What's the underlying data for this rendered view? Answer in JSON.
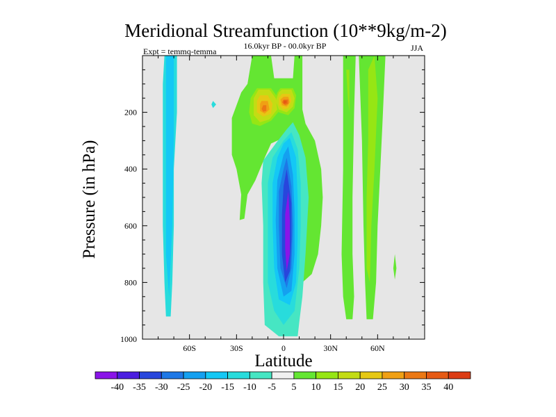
{
  "chart_data": {
    "type": "contour",
    "title": "Meridional Streamfunction (10**9kg/m-2)",
    "left_string": "Expt = temmq-temma",
    "center_string": "16.0kyr BP - 00.0kyr BP",
    "right_string": "JJA",
    "xlabel": "Latitude",
    "ylabel": "Pressure (in hPa)",
    "xlim": [
      -90,
      90
    ],
    "ylim": [
      0,
      1000
    ],
    "y_inverted": true,
    "x_ticks": [
      {
        "value": -60,
        "label": "60S"
      },
      {
        "value": -30,
        "label": "30S"
      },
      {
        "value": 0,
        "label": "0"
      },
      {
        "value": 30,
        "label": "30N"
      },
      {
        "value": 60,
        "label": "60N"
      }
    ],
    "y_ticks": [
      200,
      400,
      600,
      800,
      1000
    ],
    "background_color": "#e6e6e6",
    "colorbar": {
      "levels": [
        "-40",
        "-35",
        "-30",
        "-25",
        "-20",
        "-15",
        "-10",
        "-5",
        "5",
        "10",
        "15",
        "20",
        "25",
        "30",
        "35",
        "40"
      ],
      "colors": [
        "#8a14e8",
        "#4b1ee0",
        "#2846dc",
        "#1e78e6",
        "#14a0f0",
        "#14c8f5",
        "#28dcdc",
        "#46e6c3",
        "#f0f0f0",
        "#64e632",
        "#96e614",
        "#c3dc14",
        "#e6c814",
        "#f0a014",
        "#eb7814",
        "#e65a14",
        "#dc3c14"
      ]
    },
    "regions": [
      {
        "level": "-10",
        "points": [
          [
            -76,
            0
          ],
          [
            -68,
            0
          ],
          [
            -68,
            200
          ],
          [
            -70,
            400
          ],
          [
            -70,
            600
          ],
          [
            -71,
            800
          ],
          [
            -72,
            920
          ],
          [
            -75,
            920
          ],
          [
            -76,
            800
          ],
          [
            -77,
            600
          ],
          [
            -77,
            300
          ],
          [
            -77,
            100
          ]
        ]
      },
      {
        "level": "-15",
        "points": [
          [
            -75,
            0
          ],
          [
            -70,
            0
          ],
          [
            -70,
            300
          ],
          [
            -71,
            600
          ],
          [
            -73,
            850
          ],
          [
            -75,
            700
          ],
          [
            -75,
            300
          ]
        ]
      },
      {
        "level": "-10",
        "points": [
          [
            -45,
            160
          ],
          [
            -43,
            172
          ],
          [
            -45,
            185
          ],
          [
            -46,
            172
          ]
        ]
      },
      {
        "level": "5",
        "points": [
          [
            -20,
            0
          ],
          [
            -8,
            0
          ],
          [
            -6,
            80
          ],
          [
            6,
            80
          ],
          [
            7,
            0
          ],
          [
            12,
            0
          ],
          [
            12,
            190
          ],
          [
            14,
            240
          ],
          [
            20,
            300
          ],
          [
            24,
            400
          ],
          [
            25,
            500
          ],
          [
            24,
            600
          ],
          [
            22,
            700
          ],
          [
            18,
            770
          ],
          [
            12,
            800
          ],
          [
            10,
            600
          ],
          [
            8,
            320
          ],
          [
            0,
            290
          ],
          [
            -8,
            310
          ],
          [
            -12,
            360
          ],
          [
            -18,
            440
          ],
          [
            -23,
            490
          ],
          [
            -25,
            575
          ],
          [
            -28,
            580
          ],
          [
            -27,
            490
          ],
          [
            -30,
            400
          ],
          [
            -33,
            350
          ],
          [
            -33,
            220
          ],
          [
            -27,
            130
          ],
          [
            -23,
            100
          ]
        ]
      },
      {
        "level": "-5",
        "points": [
          [
            6,
            235
          ],
          [
            10,
            280
          ],
          [
            14,
            360
          ],
          [
            16,
            500
          ],
          [
            14,
            700
          ],
          [
            12,
            850
          ],
          [
            10,
            940
          ],
          [
            9,
            990
          ],
          [
            -3,
            990
          ],
          [
            -12,
            950
          ],
          [
            -13,
            800
          ],
          [
            -13,
            600
          ],
          [
            -14,
            450
          ],
          [
            -13,
            370
          ],
          [
            -5,
            310
          ],
          [
            2,
            260
          ]
        ]
      },
      {
        "level": "-10",
        "points": [
          [
            5,
            270
          ],
          [
            9,
            330
          ],
          [
            11,
            450
          ],
          [
            11,
            600
          ],
          [
            10,
            750
          ],
          [
            7,
            900
          ],
          [
            0,
            950
          ],
          [
            -6,
            900
          ],
          [
            -10,
            800
          ],
          [
            -10,
            600
          ],
          [
            -10,
            450
          ],
          [
            -7,
            360
          ],
          [
            0,
            300
          ]
        ]
      },
      {
        "level": "-15",
        "points": [
          [
            4,
            290
          ],
          [
            8,
            360
          ],
          [
            9,
            500
          ],
          [
            9,
            650
          ],
          [
            8,
            800
          ],
          [
            4,
            880
          ],
          [
            -3,
            860
          ],
          [
            -6,
            750
          ],
          [
            -7,
            600
          ],
          [
            -7,
            450
          ],
          [
            -4,
            360
          ],
          [
            0,
            310
          ]
        ]
      },
      {
        "level": "-20",
        "points": [
          [
            3,
            320
          ],
          [
            6,
            420
          ],
          [
            7,
            550
          ],
          [
            7,
            700
          ],
          [
            5,
            830
          ],
          [
            0,
            850
          ],
          [
            -4,
            750
          ],
          [
            -5,
            580
          ],
          [
            -4,
            440
          ],
          [
            0,
            350
          ]
        ]
      },
      {
        "level": "-25",
        "points": [
          [
            2,
            360
          ],
          [
            5,
            460
          ],
          [
            6,
            600
          ],
          [
            5,
            750
          ],
          [
            2,
            820
          ],
          [
            -2,
            750
          ],
          [
            -3,
            600
          ],
          [
            -3,
            480
          ],
          [
            0,
            400
          ]
        ]
      },
      {
        "level": "-30",
        "points": [
          [
            2,
            400
          ],
          [
            5,
            520
          ],
          [
            5,
            650
          ],
          [
            4,
            760
          ],
          [
            1,
            800
          ],
          [
            -1,
            700
          ],
          [
            -1,
            560
          ],
          [
            0,
            460
          ]
        ]
      },
      {
        "level": "-40",
        "points": [
          [
            3,
            480
          ],
          [
            4,
            580
          ],
          [
            4,
            700
          ],
          [
            2,
            760
          ],
          [
            1,
            680
          ],
          [
            1,
            560
          ]
        ]
      },
      {
        "level": "5",
        "points": [
          [
            38,
            0
          ],
          [
            46,
            0
          ],
          [
            45,
            200
          ],
          [
            44,
            500
          ],
          [
            44,
            700
          ],
          [
            45,
            850
          ],
          [
            44,
            930
          ],
          [
            40,
            930
          ],
          [
            38,
            850
          ],
          [
            37,
            700
          ],
          [
            38,
            400
          ]
        ]
      },
      {
        "level": "5",
        "points": [
          [
            48,
            0
          ],
          [
            65,
            0
          ],
          [
            63,
            250
          ],
          [
            60,
            600
          ],
          [
            59,
            800
          ],
          [
            57,
            930
          ],
          [
            53,
            930
          ],
          [
            52,
            800
          ],
          [
            51,
            600
          ],
          [
            50,
            300
          ]
        ]
      },
      {
        "level": "10",
        "points": [
          [
            54,
            50
          ],
          [
            58,
            0
          ],
          [
            60,
            150
          ],
          [
            58,
            400
          ],
          [
            56,
            600
          ],
          [
            55,
            800
          ],
          [
            53,
            750
          ],
          [
            53,
            500
          ],
          [
            54,
            300
          ]
        ]
      },
      {
        "level": "10",
        "points": [
          [
            40,
            50
          ],
          [
            42,
            50
          ],
          [
            42,
            200
          ],
          [
            41,
            150
          ]
        ]
      },
      {
        "level": "5",
        "points": [
          [
            71,
            700
          ],
          [
            72,
            750
          ],
          [
            71,
            790
          ],
          [
            70,
            750
          ]
        ]
      },
      {
        "level": "10",
        "points": [
          [
            -17,
            115
          ],
          [
            -8,
            115
          ],
          [
            -4,
            145
          ],
          [
            -2,
            190
          ],
          [
            -8,
            230
          ],
          [
            -15,
            248
          ],
          [
            -20,
            240
          ],
          [
            -22,
            200
          ],
          [
            -21,
            150
          ]
        ]
      },
      {
        "level": "10",
        "points": [
          [
            -2,
            115
          ],
          [
            6,
            115
          ],
          [
            8,
            140
          ],
          [
            7,
            185
          ],
          [
            3,
            210
          ],
          [
            -3,
            200
          ],
          [
            -6,
            160
          ],
          [
            -4,
            130
          ]
        ]
      },
      {
        "level": "15",
        "points": [
          [
            -16,
            120
          ],
          [
            -9,
            120
          ],
          [
            -5,
            150
          ],
          [
            -4,
            190
          ],
          [
            -9,
            225
          ],
          [
            -15,
            235
          ],
          [
            -19,
            210
          ],
          [
            -19,
            150
          ]
        ]
      },
      {
        "level": "15",
        "points": [
          [
            -1,
            120
          ],
          [
            5,
            120
          ],
          [
            7,
            150
          ],
          [
            6,
            180
          ],
          [
            2,
            200
          ],
          [
            -3,
            190
          ],
          [
            -5,
            160
          ],
          [
            -3,
            130
          ]
        ]
      },
      {
        "level": "20",
        "points": [
          [
            -15,
            140
          ],
          [
            -10,
            140
          ],
          [
            -7,
            170
          ],
          [
            -8,
            205
          ],
          [
            -13,
            215
          ],
          [
            -17,
            200
          ],
          [
            -17,
            160
          ]
        ]
      },
      {
        "level": "20",
        "points": [
          [
            -1,
            135
          ],
          [
            4,
            135
          ],
          [
            5,
            160
          ],
          [
            3,
            185
          ],
          [
            0,
            190
          ],
          [
            -3,
            175
          ],
          [
            -3,
            150
          ]
        ]
      },
      {
        "level": "25",
        "points": [
          [
            -14,
            160
          ],
          [
            -10,
            160
          ],
          [
            -9,
            190
          ],
          [
            -12,
            205
          ],
          [
            -15,
            195
          ],
          [
            -15,
            170
          ]
        ]
      },
      {
        "level": "25",
        "points": [
          [
            0,
            145
          ],
          [
            3,
            145
          ],
          [
            4,
            165
          ],
          [
            2,
            180
          ],
          [
            -1,
            175
          ],
          [
            -2,
            155
          ]
        ]
      },
      {
        "level": "30",
        "points": [
          [
            -13,
            175
          ],
          [
            -11,
            175
          ],
          [
            -11,
            195
          ],
          [
            -13,
            198
          ],
          [
            -14,
            188
          ]
        ]
      },
      {
        "level": "30",
        "points": [
          [
            0,
            155
          ],
          [
            3,
            155
          ],
          [
            3,
            170
          ],
          [
            1,
            175
          ],
          [
            -1,
            165
          ]
        ]
      },
      {
        "level": "35",
        "points": [
          [
            0,
            158
          ],
          [
            2,
            158
          ],
          [
            2,
            168
          ],
          [
            0,
            170
          ]
        ]
      }
    ]
  }
}
